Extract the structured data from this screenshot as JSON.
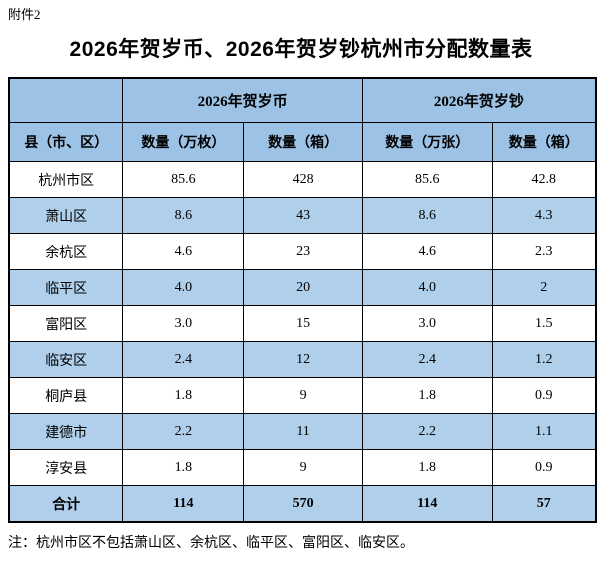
{
  "page": {
    "attachment_label": "附件2",
    "title": "2026年贺岁币、2026年贺岁钞杭州市分配数量表",
    "footnote": "注：杭州市区不包括萧山区、余杭区、临平区、富阳区、临安区。"
  },
  "colors": {
    "header_blue": "#9CC2E5",
    "stripe_blue": "#AFCFEB",
    "border_black": "#000000",
    "text_black": "#000000",
    "page_background": "#FFFFFF"
  },
  "table": {
    "group_headers": [
      "2026年贺岁币",
      "2026年贺岁钞"
    ],
    "column_headers": [
      "县（市、区）",
      "数量（万枚）",
      "数量（箱）",
      "数量（万张）",
      "数量（箱）"
    ],
    "rows": [
      {
        "region": "杭州市区",
        "values": [
          "85.6",
          "428",
          "85.6",
          "42.8"
        ]
      },
      {
        "region": "萧山区",
        "values": [
          "8.6",
          "43",
          "8.6",
          "4.3"
        ]
      },
      {
        "region": "余杭区",
        "values": [
          "4.6",
          "23",
          "4.6",
          "2.3"
        ]
      },
      {
        "region": "临平区",
        "values": [
          "4.0",
          "20",
          "4.0",
          "2"
        ]
      },
      {
        "region": "富阳区",
        "values": [
          "3.0",
          "15",
          "3.0",
          "1.5"
        ]
      },
      {
        "region": "临安区",
        "values": [
          "2.4",
          "12",
          "2.4",
          "1.2"
        ]
      },
      {
        "region": "桐庐县",
        "values": [
          "1.8",
          "9",
          "1.8",
          "0.9"
        ]
      },
      {
        "region": "建德市",
        "values": [
          "2.2",
          "11",
          "2.2",
          "1.1"
        ]
      },
      {
        "region": "淳安县",
        "values": [
          "1.8",
          "9",
          "1.8",
          "0.9"
        ]
      }
    ],
    "total_row": {
      "region": "合计",
      "values": [
        "114",
        "570",
        "114",
        "57"
      ]
    }
  }
}
